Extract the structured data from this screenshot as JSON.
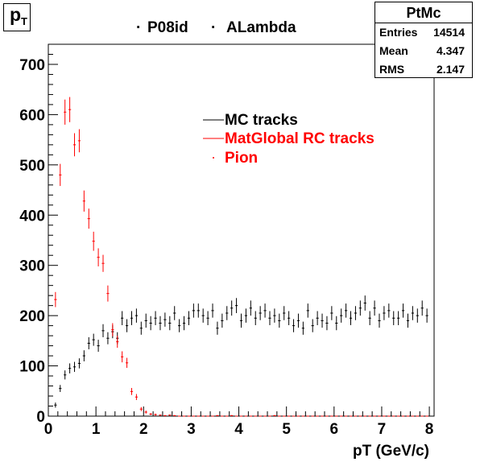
{
  "canvas_label": "p",
  "canvas_label_sub": "T",
  "title_left": "P08id",
  "title_right": "ALambda",
  "stats": {
    "name": "PtMc",
    "rows": [
      {
        "key": "Entries",
        "value": "14514"
      },
      {
        "key": "Mean",
        "value": "4.347"
      },
      {
        "key": "RMS",
        "value": "2.147"
      }
    ]
  },
  "chart_data": {
    "type": "scatter",
    "xlabel": "pT (GeV/c)",
    "ylabel": "",
    "xlim": [
      0,
      8.1
    ],
    "ylim": [
      0,
      740
    ],
    "x_ticks": [
      0,
      1,
      2,
      3,
      4,
      5,
      6,
      7,
      8
    ],
    "y_ticks": [
      0,
      100,
      200,
      300,
      400,
      500,
      600,
      700
    ],
    "bin_width": 0.1,
    "grid": false,
    "legend_position": "upper-center",
    "series": [
      {
        "name": "MC tracks",
        "color": "#000000",
        "x": [
          0.15,
          0.25,
          0.35,
          0.45,
          0.55,
          0.65,
          0.75,
          0.85,
          0.95,
          1.05,
          1.15,
          1.25,
          1.35,
          1.45,
          1.55,
          1.65,
          1.75,
          1.85,
          1.95,
          2.05,
          2.15,
          2.25,
          2.35,
          2.45,
          2.55,
          2.65,
          2.75,
          2.85,
          2.95,
          3.05,
          3.15,
          3.25,
          3.35,
          3.45,
          3.55,
          3.65,
          3.75,
          3.85,
          3.95,
          4.05,
          4.15,
          4.25,
          4.35,
          4.45,
          4.55,
          4.65,
          4.75,
          4.85,
          4.95,
          5.05,
          5.15,
          5.25,
          5.35,
          5.45,
          5.55,
          5.65,
          5.75,
          5.85,
          5.95,
          6.05,
          6.15,
          6.25,
          6.35,
          6.45,
          6.55,
          6.65,
          6.75,
          6.85,
          6.95,
          7.05,
          7.15,
          7.25,
          7.35,
          7.45,
          7.55,
          7.65,
          7.75,
          7.85,
          7.95
        ],
        "values": [
          22,
          55,
          82,
          95,
          98,
          105,
          120,
          145,
          152,
          140,
          170,
          155,
          168,
          155,
          195,
          180,
          195,
          200,
          175,
          190,
          185,
          195,
          185,
          192,
          185,
          205,
          180,
          185,
          195,
          210,
          210,
          200,
          195,
          210,
          175,
          190,
          205,
          215,
          220,
          190,
          200,
          215,
          195,
          205,
          210,
          195,
          200,
          190,
          205,
          195,
          180,
          190,
          175,
          210,
          180,
          195,
          190,
          185,
          205,
          185,
          200,
          210,
          195,
          205,
          215,
          225,
          195,
          215,
          190,
          205,
          210,
          195,
          195,
          210,
          190,
          205,
          200,
          215,
          200
        ],
        "errors": [
          5,
          7,
          9,
          10,
          10,
          10,
          11,
          12,
          12,
          12,
          13,
          12,
          13,
          12,
          14,
          13,
          14,
          14,
          13,
          14,
          14,
          14,
          14,
          14,
          14,
          14,
          13,
          14,
          14,
          14,
          14,
          14,
          14,
          14,
          13,
          14,
          14,
          15,
          15,
          14,
          14,
          15,
          14,
          14,
          14,
          14,
          14,
          14,
          14,
          14,
          13,
          14,
          13,
          14,
          13,
          14,
          14,
          14,
          14,
          14,
          14,
          14,
          14,
          14,
          15,
          15,
          14,
          15,
          14,
          14,
          14,
          14,
          14,
          14,
          14,
          14,
          14,
          15,
          14
        ]
      },
      {
        "name": "MatGlobal RC tracks",
        "color": "#ff0000",
        "x": [
          0.15,
          0.25,
          0.35,
          0.45,
          0.55,
          0.65,
          0.75,
          0.85,
          0.95,
          1.05,
          1.15,
          1.25,
          1.35,
          1.45,
          1.55,
          1.65,
          1.75,
          1.85,
          1.95,
          2.05,
          2.15,
          2.25,
          2.35,
          2.45,
          2.55,
          2.65,
          2.75,
          2.85,
          2.95,
          3.05,
          3.15,
          3.25,
          3.35,
          3.45,
          3.55,
          3.65,
          3.75,
          3.85,
          3.95,
          4.05,
          4.15,
          4.25,
          4.35,
          4.45,
          4.55,
          4.65,
          4.75,
          4.85,
          4.95,
          5.05,
          5.15,
          5.25,
          5.35,
          5.45,
          5.55,
          5.65,
          5.75,
          5.85,
          5.95,
          6.05,
          6.15,
          6.25,
          6.35,
          6.45,
          6.55,
          6.65,
          6.75,
          6.85,
          6.95,
          7.05,
          7.15,
          7.25,
          7.35,
          7.45,
          7.55,
          7.65,
          7.75,
          7.85,
          7.95
        ],
        "values": [
          232,
          480,
          605,
          610,
          540,
          548,
          428,
          393,
          348,
          316,
          304,
          244,
          172,
          148,
          118,
          106,
          49,
          38,
          14,
          8,
          4,
          3,
          2,
          1,
          2,
          1,
          0,
          0,
          0,
          0,
          0,
          0,
          0,
          0,
          1,
          0,
          0,
          1,
          0,
          0,
          0,
          0,
          0,
          0,
          0,
          0,
          1,
          0,
          0,
          0,
          0,
          0,
          0,
          0,
          0,
          0,
          0,
          0,
          0,
          0,
          0,
          0,
          0,
          0,
          0,
          0,
          0,
          0,
          0,
          0,
          0,
          0,
          0,
          0,
          0,
          0,
          0,
          0,
          0
        ],
        "errors": [
          15,
          22,
          25,
          25,
          23,
          23,
          21,
          20,
          19,
          18,
          17,
          16,
          13,
          12,
          11,
          10,
          7,
          6,
          4,
          3,
          2,
          2,
          1,
          1,
          1,
          1,
          0,
          0,
          0,
          0,
          0,
          0,
          0,
          0,
          1,
          0,
          0,
          1,
          0,
          0,
          0,
          0,
          0,
          0,
          0,
          0,
          1,
          0,
          0,
          0,
          0,
          0,
          0,
          0,
          0,
          0,
          0,
          0,
          0,
          0,
          0,
          0,
          0,
          0,
          0,
          0,
          0,
          0,
          0,
          0,
          0,
          0,
          0,
          0,
          0,
          0,
          0,
          0,
          0
        ]
      },
      {
        "name": "Pion",
        "color": "#ff0000",
        "x": [],
        "values": [],
        "errors": []
      }
    ]
  }
}
